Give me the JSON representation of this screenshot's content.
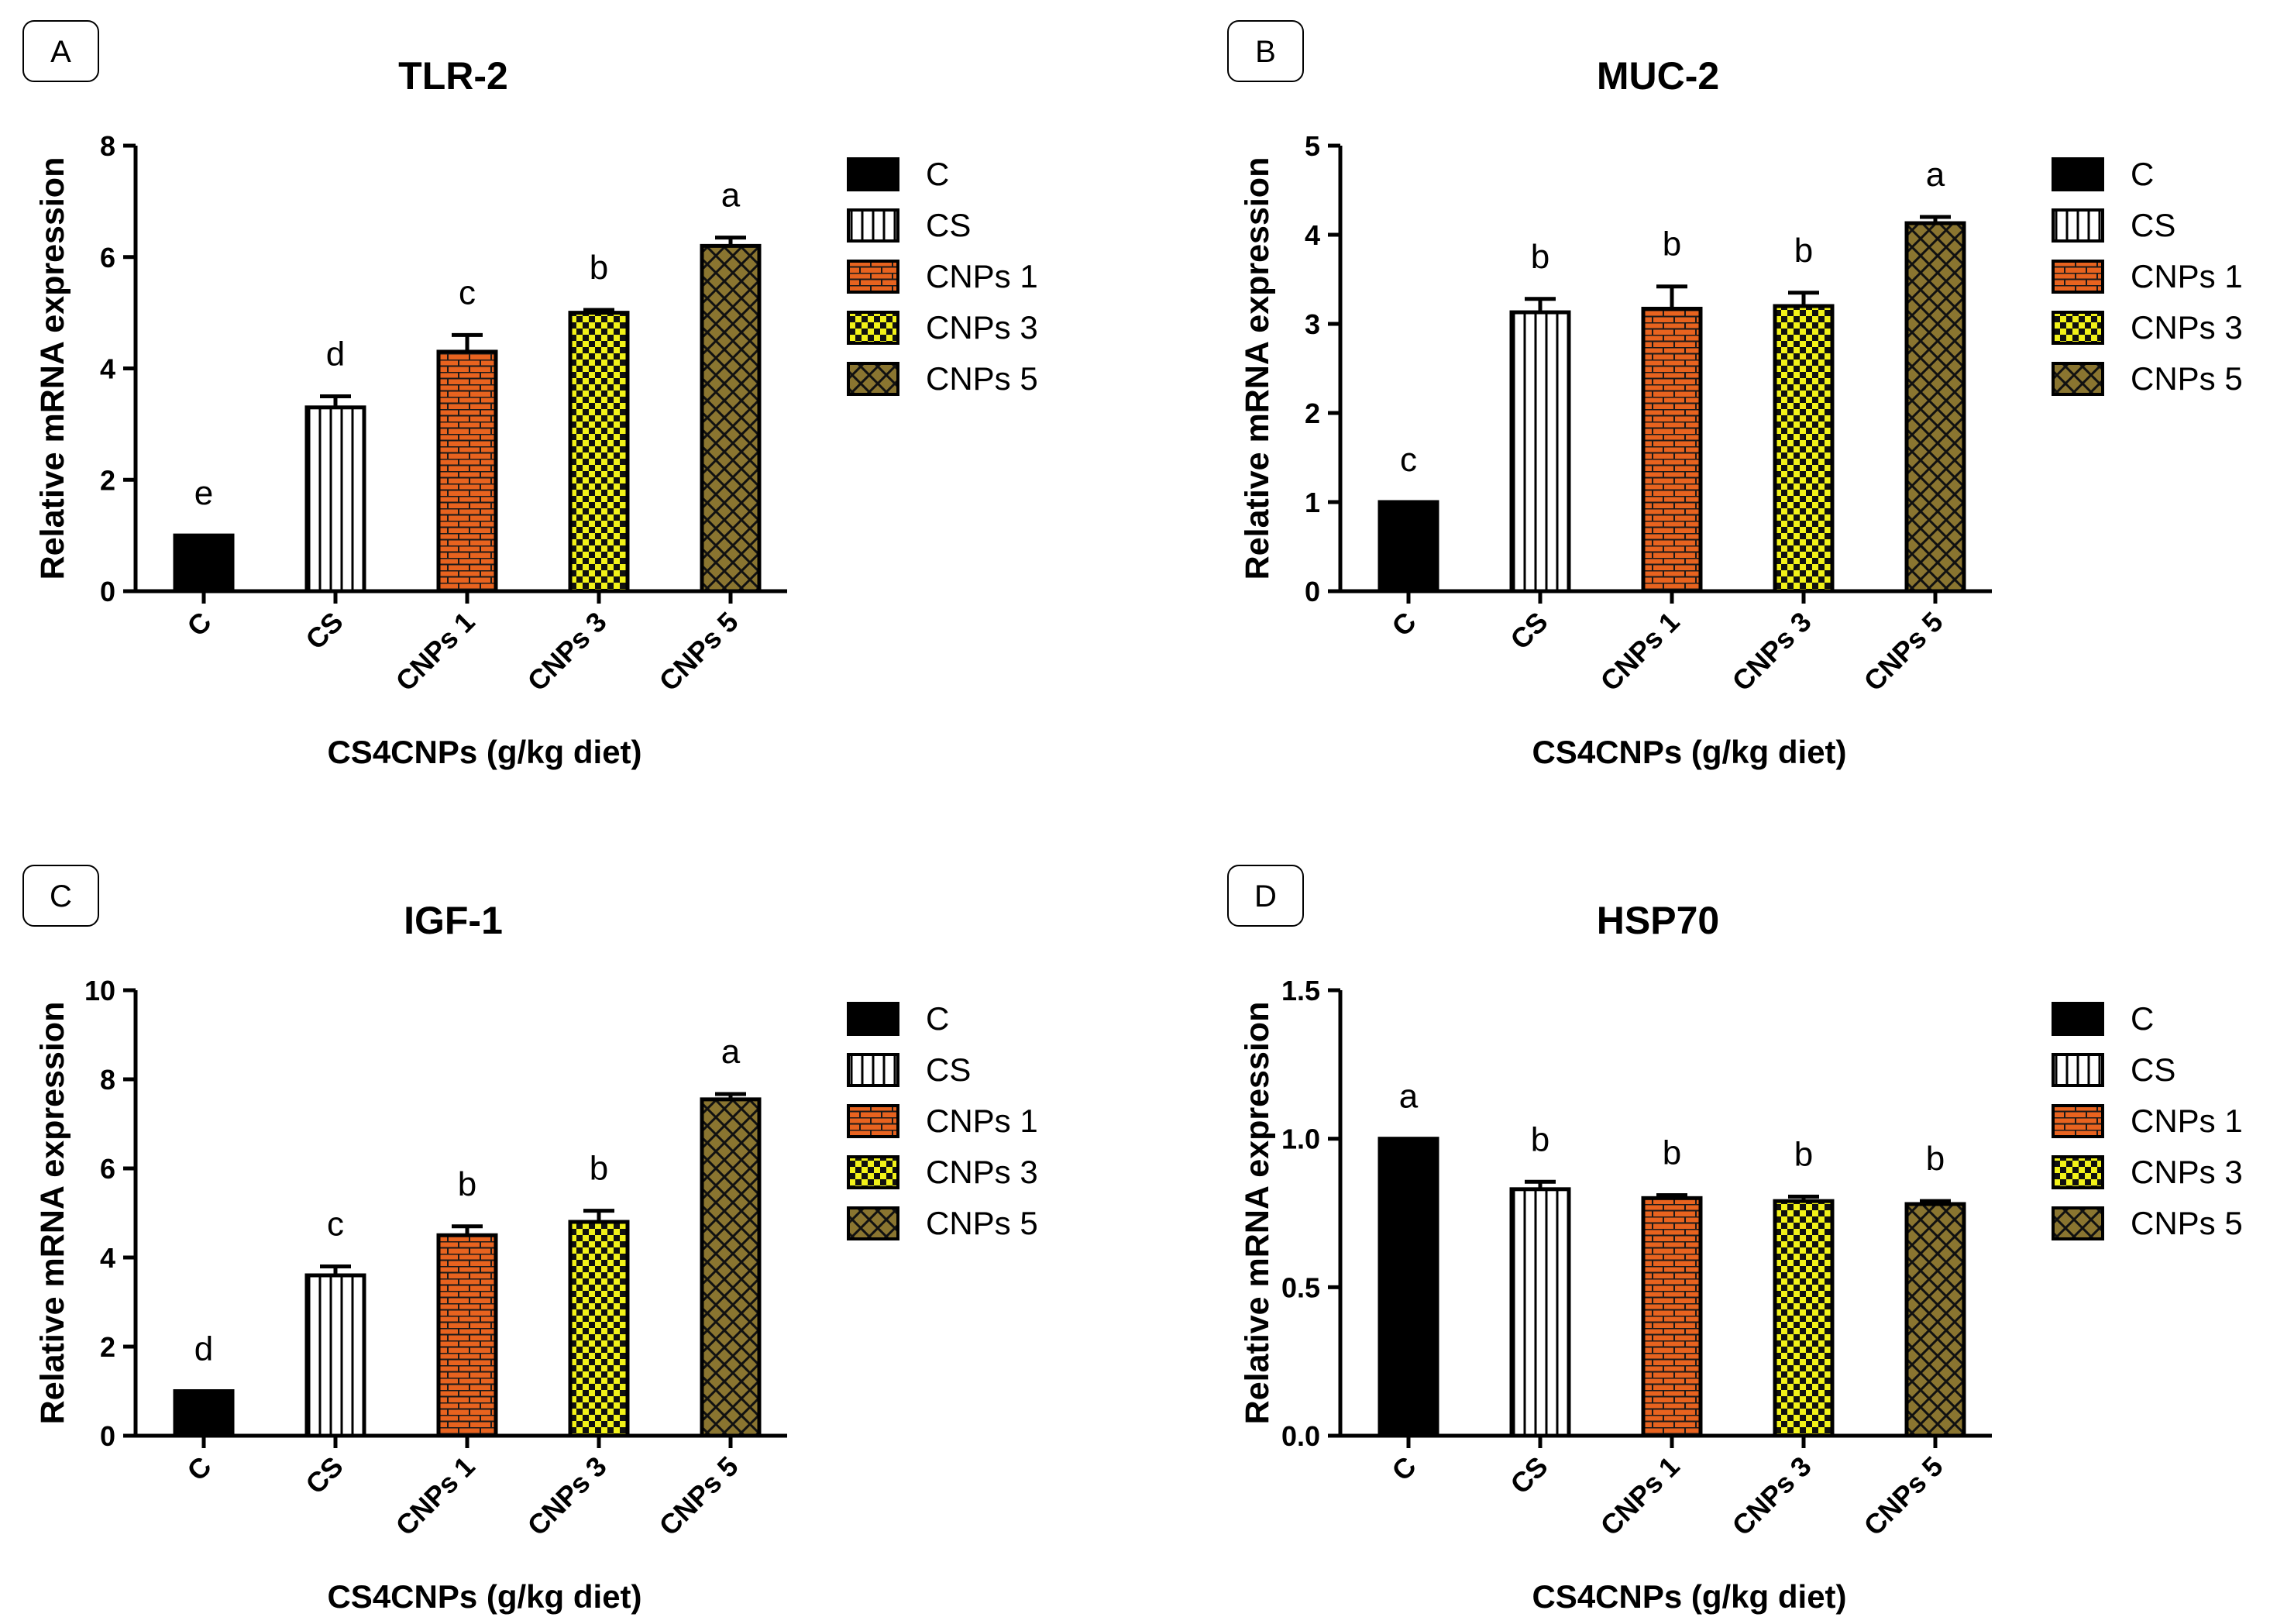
{
  "figure": {
    "legend_categories": [
      "C",
      "CS",
      "CNPs 1",
      "CNPs 3",
      "CNPs 5"
    ],
    "xlabel": "CS4CNPs (g/kg diet)",
    "ylabel": "Relative mRNA expression"
  },
  "series_colors": [
    "#000000",
    "#ffffff",
    "#e8631f",
    "#f2f218",
    "#8a7530"
  ],
  "chart_data": [
    {
      "panel": "A",
      "type": "bar",
      "title": "TLR-2",
      "categories": [
        "C",
        "CS",
        "CNPs 1",
        "CNPs 3",
        "CNPs 5"
      ],
      "values": [
        1.0,
        3.3,
        4.3,
        5.0,
        6.2
      ],
      "errors": [
        0.0,
        0.2,
        0.3,
        0.05,
        0.15
      ],
      "significance": [
        "e",
        "d",
        "c",
        "b",
        "a"
      ],
      "yticks": [
        "0",
        "2",
        "4",
        "6",
        "8"
      ],
      "ylim": [
        0,
        8
      ],
      "xlabel": "CS4CNPs (g/kg diet)",
      "ylabel": "Relative mRNA expression"
    },
    {
      "panel": "B",
      "type": "bar",
      "title": "MUC-2",
      "categories": [
        "C",
        "CS",
        "CNPs 1",
        "CNPs 3",
        "CNPs 5"
      ],
      "values": [
        1.0,
        3.13,
        3.17,
        3.2,
        4.13
      ],
      "errors": [
        0.0,
        0.15,
        0.25,
        0.15,
        0.07
      ],
      "significance": [
        "c",
        "b",
        "b",
        "b",
        "a"
      ],
      "yticks": [
        "0",
        "1",
        "2",
        "3",
        "4",
        "5"
      ],
      "ylim": [
        0,
        5
      ],
      "xlabel": "CS4CNPs (g/kg diet)",
      "ylabel": "Relative mRNA expression"
    },
    {
      "panel": "C",
      "type": "bar",
      "title": "IGF-1",
      "categories": [
        "C",
        "CS",
        "CNPs 1",
        "CNPs 3",
        "CNPs 5"
      ],
      "values": [
        1.0,
        3.6,
        4.5,
        4.8,
        7.55
      ],
      "errors": [
        0.0,
        0.2,
        0.2,
        0.25,
        0.12
      ],
      "significance": [
        "d",
        "c",
        "b",
        "b",
        "a"
      ],
      "yticks": [
        "0",
        "2",
        "4",
        "6",
        "8",
        "10"
      ],
      "ylim": [
        0,
        10
      ],
      "xlabel": "CS4CNPs (g/kg diet)",
      "ylabel": "Relative mRNA expression"
    },
    {
      "panel": "D",
      "type": "bar",
      "title": "HSP70",
      "categories": [
        "C",
        "CS",
        "CNPs 1",
        "CNPs 3",
        "CNPs 5"
      ],
      "values": [
        1.0,
        0.83,
        0.8,
        0.79,
        0.78
      ],
      "errors": [
        0.0,
        0.025,
        0.01,
        0.015,
        0.01
      ],
      "significance": [
        "a",
        "b",
        "b",
        "b",
        "b"
      ],
      "yticks": [
        "0.0",
        "0.5",
        "1.0",
        "1.5"
      ],
      "ylim": [
        0,
        1.5
      ],
      "xlabel": "CS4CNPs (g/kg diet)",
      "ylabel": "Relative mRNA expression"
    }
  ]
}
